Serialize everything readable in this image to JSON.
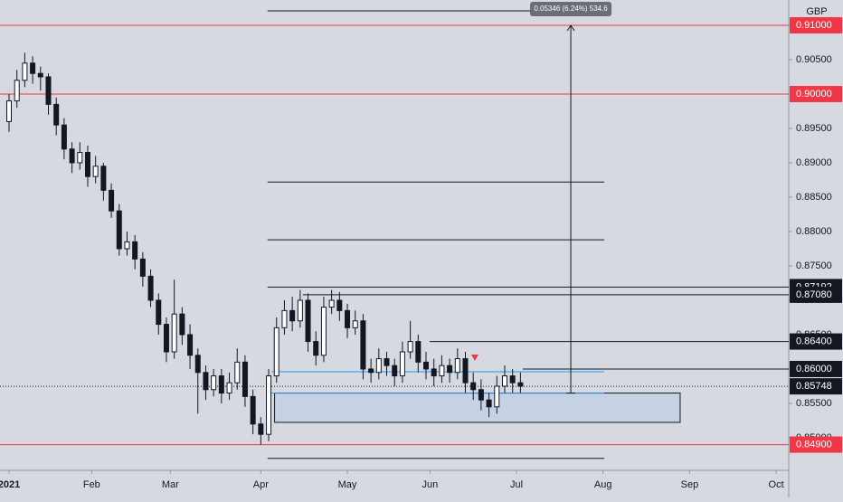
{
  "chart_data": {
    "type": "candlestick",
    "currency": "GBP",
    "xlim": [
      -2.3,
      198.2
    ],
    "ylim": [
      0.84526,
      0.91368
    ],
    "xticks": [
      {
        "value": 0,
        "label": "2021"
      },
      {
        "value": 21,
        "label": "Feb"
      },
      {
        "value": 41,
        "label": "Mar"
      },
      {
        "value": 64,
        "label": "Apr"
      },
      {
        "value": 86,
        "label": "May"
      },
      {
        "value": 107,
        "label": "Jun"
      },
      {
        "value": 129,
        "label": "Jul"
      },
      {
        "value": 151,
        "label": "Aug"
      },
      {
        "value": 173,
        "label": "Sep"
      },
      {
        "value": 195,
        "label": "Oct"
      }
    ],
    "yticks": [
      {
        "value": 0.85,
        "label": "0.85000"
      },
      {
        "value": 0.855,
        "label": "0.85500"
      },
      {
        "value": 0.86,
        "label": "0.86000"
      },
      {
        "value": 0.865,
        "label": "0.86500"
      },
      {
        "value": 0.87,
        "label": "0.87000"
      },
      {
        "value": 0.875,
        "label": "0.87500"
      },
      {
        "value": 0.88,
        "label": "0.88000"
      },
      {
        "value": 0.885,
        "label": "0.88500"
      },
      {
        "value": 0.89,
        "label": "0.89000"
      },
      {
        "value": 0.895,
        "label": "0.89500"
      },
      {
        "value": 0.9,
        "label": "0.90000"
      },
      {
        "value": 0.905,
        "label": "0.90500"
      },
      {
        "value": 0.91,
        "label": "0.91000"
      }
    ],
    "x": [
      0,
      2,
      4,
      6,
      8,
      10,
      12,
      14,
      16,
      18,
      20,
      22,
      24,
      26,
      28,
      30,
      32,
      34,
      36,
      38,
      40,
      42,
      44,
      46,
      48,
      50,
      52,
      54,
      56,
      58,
      60,
      62,
      64,
      66,
      68,
      70,
      72,
      74,
      76,
      78,
      80,
      82,
      84,
      86,
      88,
      90,
      92,
      94,
      96,
      98,
      100,
      102,
      104,
      106,
      108,
      110,
      112,
      114,
      116,
      118,
      120,
      122,
      124,
      126,
      128,
      130
    ],
    "open": [
      0.896,
      0.899,
      0.902,
      0.9045,
      0.903,
      0.9025,
      0.8985,
      0.8955,
      0.892,
      0.89,
      0.8915,
      0.888,
      0.8895,
      0.886,
      0.883,
      0.8775,
      0.8785,
      0.876,
      0.8735,
      0.87,
      0.8665,
      0.8625,
      0.868,
      0.865,
      0.862,
      0.8595,
      0.857,
      0.859,
      0.8565,
      0.858,
      0.861,
      0.856,
      0.852,
      0.8505,
      0.859,
      0.866,
      0.8685,
      0.867,
      0.87,
      0.864,
      0.862,
      0.869,
      0.87,
      0.8685,
      0.866,
      0.867,
      0.86,
      0.8595,
      0.8615,
      0.8605,
      0.859,
      0.8625,
      0.864,
      0.861,
      0.86,
      0.859,
      0.8605,
      0.8595,
      0.8615,
      0.858,
      0.857,
      0.8555,
      0.8545,
      0.8575,
      0.859,
      0.858
    ],
    "high": [
      0.9,
      0.9035,
      0.906,
      0.9055,
      0.904,
      0.903,
      0.8995,
      0.8965,
      0.893,
      0.893,
      0.8925,
      0.891,
      0.89,
      0.887,
      0.884,
      0.88,
      0.8795,
      0.877,
      0.8745,
      0.871,
      0.8675,
      0.873,
      0.869,
      0.8665,
      0.863,
      0.8605,
      0.86,
      0.86,
      0.8595,
      0.863,
      0.862,
      0.857,
      0.853,
      0.86,
      0.8675,
      0.87,
      0.8705,
      0.8715,
      0.871,
      0.8655,
      0.8705,
      0.8715,
      0.8712,
      0.8695,
      0.8685,
      0.868,
      0.8615,
      0.863,
      0.8625,
      0.8615,
      0.864,
      0.867,
      0.865,
      0.8625,
      0.8615,
      0.862,
      0.8615,
      0.863,
      0.8625,
      0.8595,
      0.8585,
      0.8565,
      0.859,
      0.8605,
      0.86,
      0.8595
    ],
    "low": [
      0.8945,
      0.898,
      0.901,
      0.9015,
      0.9005,
      0.897,
      0.894,
      0.8905,
      0.8885,
      0.889,
      0.8865,
      0.887,
      0.8845,
      0.882,
      0.8765,
      0.8765,
      0.8745,
      0.872,
      0.869,
      0.865,
      0.861,
      0.8615,
      0.8635,
      0.86,
      0.8535,
      0.8555,
      0.856,
      0.855,
      0.8555,
      0.857,
      0.8545,
      0.8505,
      0.849,
      0.8495,
      0.858,
      0.865,
      0.8655,
      0.866,
      0.8625,
      0.8605,
      0.861,
      0.868,
      0.867,
      0.8645,
      0.865,
      0.8585,
      0.858,
      0.8585,
      0.859,
      0.8575,
      0.858,
      0.8615,
      0.8595,
      0.8585,
      0.8575,
      0.858,
      0.858,
      0.8585,
      0.8565,
      0.8555,
      0.854,
      0.853,
      0.8535,
      0.8565,
      0.8565,
      0.8565
    ],
    "close": [
      0.899,
      0.902,
      0.9045,
      0.903,
      0.9025,
      0.8985,
      0.8955,
      0.892,
      0.89,
      0.8915,
      0.888,
      0.8895,
      0.886,
      0.883,
      0.8775,
      0.8785,
      0.876,
      0.8735,
      0.87,
      0.8665,
      0.8625,
      0.868,
      0.865,
      0.862,
      0.8595,
      0.857,
      0.859,
      0.8565,
      0.858,
      0.861,
      0.856,
      0.852,
      0.8505,
      0.859,
      0.866,
      0.8685,
      0.867,
      0.87,
      0.864,
      0.862,
      0.869,
      0.87,
      0.8685,
      0.866,
      0.867,
      0.86,
      0.8595,
      0.8615,
      0.8605,
      0.859,
      0.8625,
      0.864,
      0.861,
      0.86,
      0.859,
      0.8605,
      0.8595,
      0.8615,
      0.858,
      0.857,
      0.8555,
      0.8545,
      0.8575,
      0.859,
      0.858,
      0.8575
    ],
    "levels": [
      {
        "value": 0.91,
        "color": "#f23645",
        "from": -2.3,
        "to": 198.2
      },
      {
        "value": 0.9,
        "color": "#f23645",
        "from": -2.3,
        "to": 198.2
      },
      {
        "value": 0.849,
        "color": "#f23645",
        "from": -2.3,
        "to": 198.2
      },
      {
        "value": 0.9121,
        "color": "#131722",
        "from": 65.7,
        "to": 151.3
      },
      {
        "value": 0.8872,
        "color": "#131722",
        "from": 65.7,
        "to": 151.3
      },
      {
        "value": 0.8788,
        "color": "#131722",
        "from": 65.7,
        "to": 151.3
      },
      {
        "value": 0.87192,
        "color": "#131722",
        "from": 65.7,
        "to": 198.2
      },
      {
        "value": 0.8708,
        "color": "#131722",
        "from": 74.7,
        "to": 198.2
      },
      {
        "value": 0.864,
        "color": "#131722",
        "from": 106.9,
        "to": 198.2
      },
      {
        "value": 0.86,
        "color": "#131722",
        "from": 130.6,
        "to": 198.2
      },
      {
        "value": 0.847,
        "color": "#131722",
        "from": 65.7,
        "to": 151.3
      },
      {
        "value": 0.8596,
        "color": "#2196f3",
        "from": 66.7,
        "to": 151.3
      },
      {
        "value": 0.8565,
        "color": "#2196f3",
        "from": 66.7,
        "to": 151.3
      }
    ],
    "zone": {
      "top": 0.8565,
      "bottom": 0.85224,
      "from": 67.5,
      "to": 170.6
    },
    "measure": {
      "label": "0.05346 (6.24%) 534.6",
      "from": 0.8565,
      "to": 0.91,
      "x": 142.8
    },
    "last_price": 0.85748,
    "price_labels": [
      {
        "value": 0.91,
        "label": "0.91000",
        "color": "#f23645"
      },
      {
        "value": 0.9,
        "label": "0.90000",
        "color": "#f23645"
      },
      {
        "value": 0.87192,
        "label": "0.87192",
        "color": "#131722"
      },
      {
        "value": 0.8708,
        "label": "0.87080",
        "color": "#131722"
      },
      {
        "value": 0.864,
        "label": "0.86400",
        "color": "#131722"
      },
      {
        "value": 0.86,
        "label": "0.86000",
        "color": "#131722"
      },
      {
        "value": 0.85748,
        "label": "0.85748",
        "color": "#131722"
      },
      {
        "value": 0.849,
        "label": "0.84900",
        "color": "#f23645"
      }
    ]
  }
}
